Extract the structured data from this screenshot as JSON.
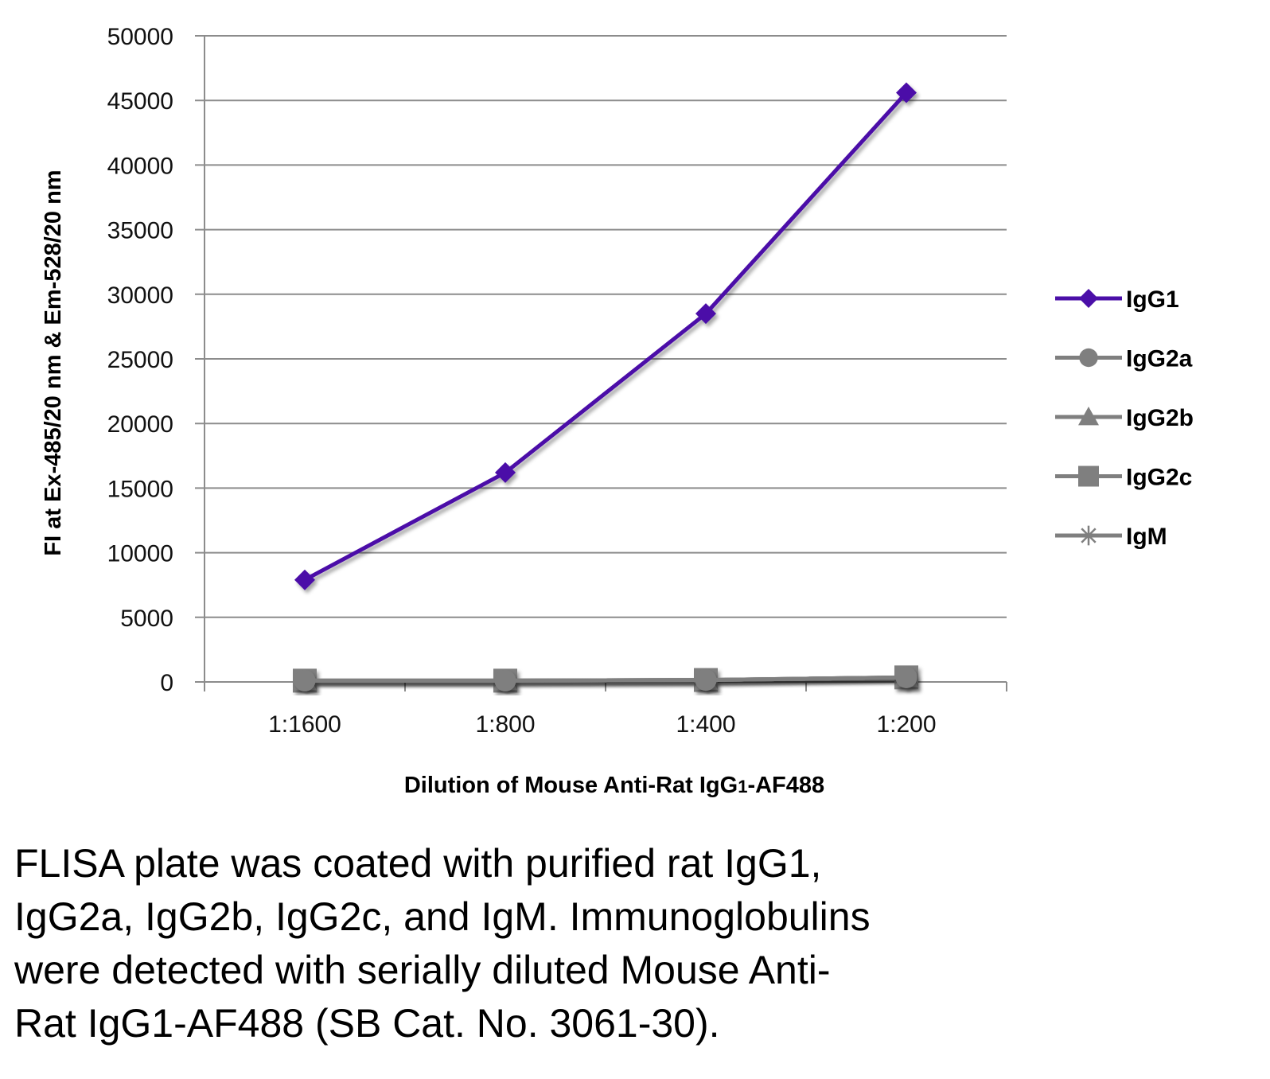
{
  "chart_data": {
    "type": "line",
    "categories": [
      "1:1600",
      "1:800",
      "1:400",
      "1:200"
    ],
    "series": [
      {
        "name": "IgG1",
        "marker": "diamond",
        "color": "#4B0FA8",
        "values": [
          7900,
          16200,
          28500,
          45600
        ]
      },
      {
        "name": "IgG2a",
        "marker": "circle",
        "color": "#7F7F7F",
        "values": [
          100,
          100,
          150,
          350
        ]
      },
      {
        "name": "IgG2b",
        "marker": "triangle",
        "color": "#7F7F7F",
        "values": [
          100,
          100,
          150,
          350
        ]
      },
      {
        "name": "IgG2c",
        "marker": "square",
        "color": "#7F7F7F",
        "values": [
          100,
          100,
          150,
          350
        ]
      },
      {
        "name": "IgM",
        "marker": "star",
        "color": "#7F7F7F",
        "values": [
          100,
          100,
          150,
          350
        ]
      }
    ],
    "xlabel": "Dilution of Mouse Anti-Rat IgG1-AF488",
    "ylabel": "FI at Ex-485/20 nm & Em-528/20 nm",
    "ylim": [
      0,
      50000
    ],
    "yticks": [
      0,
      5000,
      10000,
      15000,
      20000,
      25000,
      30000,
      35000,
      40000,
      45000,
      50000
    ],
    "grid": true,
    "legend_position": "right",
    "colors": {
      "gridline": "#8C8C8C",
      "axis": "#8C8C8C"
    }
  },
  "caption": {
    "lines": [
      "FLISA plate was coated with purified rat IgG1,",
      "IgG2a, IgG2b, IgG2c, and IgM.  Immunoglobulins",
      "were detected with serially diluted Mouse Anti-",
      "Rat IgG1-AF488 (SB Cat. No. 3061-30)."
    ]
  }
}
